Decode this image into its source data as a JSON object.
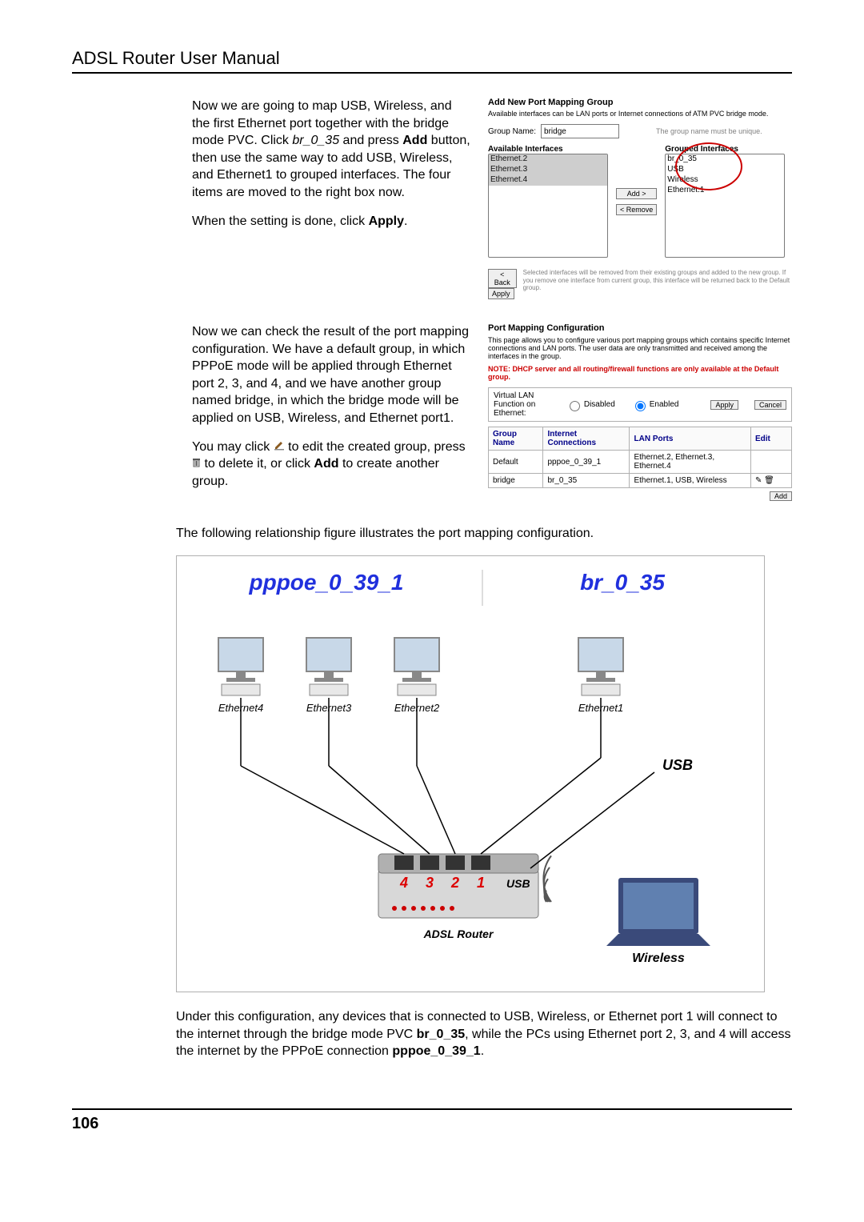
{
  "header": {
    "title": "ADSL Router User Manual"
  },
  "para1a": "Now we are going to map USB, Wireless, and the first Ethernet port together with the bridge mode PVC. Click ",
  "para1b_italic": "br_0_35",
  "para1c": " and press ",
  "para1d_bold": "Add",
  "para1e": " button, then use the same way to add USB, Wireless, and Ethernet1 to grouped interfaces. The four items are moved to the right box now.",
  "para2a": "When the setting is done, click ",
  "para2b_bold": "Apply",
  "para2c": ".",
  "shot1": {
    "title": "Add New Port Mapping Group",
    "note": "Available interfaces can be LAN ports or Internet connections of ATM PVC bridge mode.",
    "group_label": "Group Name:",
    "group_value": "bridge",
    "group_hint": "The group name must be unique.",
    "avail_label": "Available Interfaces",
    "avail_items": [
      "Ethernet.2",
      "Ethernet.3",
      "Ethernet.4"
    ],
    "grouped_label": "Grouped Interfaces",
    "grouped_items": [
      "br_0_35",
      "USB",
      "Wireless",
      "Ethernet.1"
    ],
    "btn_add": "Add >",
    "btn_remove": "< Remove",
    "btn_back": "< Back",
    "btn_apply": "Apply",
    "bottom_note": "Selected interfaces will be removed from their existing groups and added to the new group. If you remove one interface from current group, this interface will be returned back to the Default group."
  },
  "para3a": "Now we can check the result of the port mapping configuration. We have a default group, in which PPPoE mode will be applied through Ethernet port 2, 3, and 4, and we have another group named bridge, in which the bridge mode will be applied on USB, Wireless, and Ethernet port1.",
  "para4a": "You may click ",
  "para4b": " to edit the created group, press ",
  "para4c": " to delete it, or click ",
  "para4d_bold": "Add",
  "para4e": " to create another group.",
  "shot2": {
    "title": "Port Mapping Configuration",
    "desc": "This page allows you to configure various port mapping groups which contains specific Internet connections and LAN ports. The user data are only transmitted and received among the interfaces in the group.",
    "warn": "NOTE: DHCP server and all routing/firewall functions are only available at the Default group.",
    "vlan_label": "Virtual LAN Function on Ethernet:",
    "opt_disabled": "Disabled",
    "opt_enabled": "Enabled",
    "btn_apply": "Apply",
    "btn_cancel": "Cancel",
    "th_group": "Group Name",
    "th_conn": "Internet Connections",
    "th_lan": "LAN Ports",
    "th_edit": "Edit",
    "rows": [
      {
        "g": "Default",
        "c": "pppoe_0_39_1",
        "l": "Ethernet.2, Ethernet.3, Ethernet.4",
        "e": ""
      },
      {
        "g": "bridge",
        "c": "br_0_35",
        "l": "Ethernet.1, USB, Wireless",
        "e": "icons"
      }
    ],
    "btn_add": "Add"
  },
  "para5": "The following relationship figure illustrates the port mapping configuration.",
  "diagram": {
    "left_title": "pppoe_0_39_1",
    "right_title": "br_0_35",
    "labels": {
      "e4": "Ethernet4",
      "e3": "Ethernet3",
      "e2": "Ethernet2",
      "e1": "Ethernet1",
      "usb": "USB",
      "wireless": "Wireless",
      "adsl": "ADSL Router",
      "port_usb": "USB"
    },
    "ports": [
      "4",
      "3",
      "2",
      "1"
    ],
    "colors": {
      "title": "#2030dd",
      "port": "#dd0000",
      "monitor_frame": "#888888",
      "monitor_screen": "#c8d8e8",
      "laptop_lid": "#3a4a7a",
      "laptop_screen": "#6080b0",
      "router_body": "#d8d8d8",
      "router_top": "#b0b0b0"
    }
  },
  "para6a": "Under this configuration, any devices that is connected to USB, Wireless, or Ethernet port 1 will connect to the internet through the bridge mode PVC ",
  "para6b_bold": "br_0_35",
  "para6c": ", while the PCs using Ethernet port 2, 3, and 4 will access the internet by the PPPoE connection ",
  "para6d_bold": "pppoe_0_39_1",
  "para6e": ".",
  "pagenum": "106"
}
